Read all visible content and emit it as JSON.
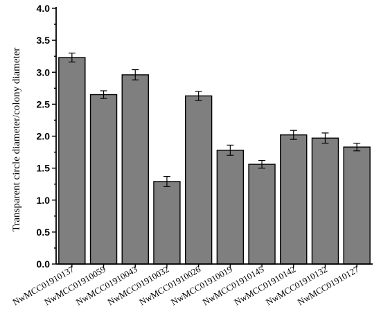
{
  "chart_data": {
    "type": "bar",
    "ylabel": "Transparent  circle diameter/colony diameter",
    "ylim": [
      0,
      4.0
    ],
    "yticks": [
      "0.0",
      "0.5",
      "1.0",
      "1.5",
      "2.0",
      "2.5",
      "3.0",
      "3.5",
      "4.0"
    ],
    "grid": false,
    "categories": [
      "NwMCC01910137",
      "NwMCC01910059",
      "NwMCC01910043",
      "NwMCC01910032",
      "NwMCC01910026",
      "NwMCC01910019",
      "NwMCC01910145",
      "NwMCC01910142",
      "NwMCC01910132",
      "NwMCC01910127"
    ],
    "values": [
      3.23,
      2.65,
      2.96,
      1.29,
      2.63,
      1.78,
      1.56,
      2.02,
      1.97,
      1.83
    ],
    "errors": [
      0.07,
      0.06,
      0.08,
      0.08,
      0.07,
      0.08,
      0.06,
      0.07,
      0.08,
      0.06
    ],
    "colors": {
      "bar": "#7f7f7f",
      "edge": "#000000"
    }
  }
}
